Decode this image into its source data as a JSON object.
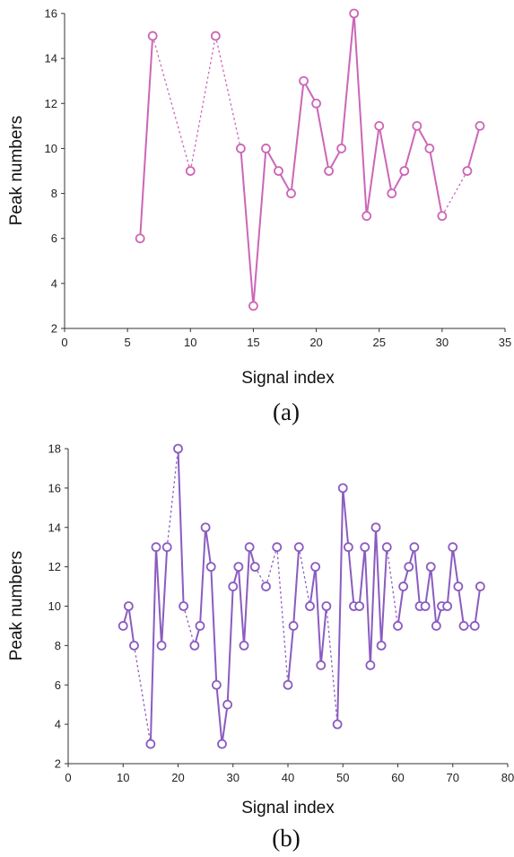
{
  "chart_data": [
    {
      "type": "line",
      "panel_label": "(a)",
      "xlabel": "Signal index",
      "ylabel": "Peak numbers",
      "xlim": [
        0,
        35
      ],
      "ylim": [
        2,
        16
      ],
      "xticks": [
        0,
        5,
        10,
        15,
        20,
        25,
        30,
        35
      ],
      "yticks": [
        2,
        4,
        6,
        8,
        10,
        12,
        14,
        16
      ],
      "color": "#cc66b8",
      "grid": false,
      "series": [
        {
          "x": [
            6,
            7,
            10,
            12,
            14,
            15,
            16,
            17,
            18,
            19,
            20,
            21,
            22,
            23,
            24,
            25,
            26,
            27,
            28,
            29,
            30,
            32,
            33
          ],
          "y": [
            6,
            15,
            9,
            15,
            10,
            3,
            10,
            9,
            8,
            13,
            12,
            9,
            10,
            16,
            7,
            11,
            8,
            9,
            11,
            10,
            7,
            9,
            11
          ]
        }
      ]
    },
    {
      "type": "line",
      "panel_label": "(b)",
      "xlabel": "Signal index",
      "ylabel": "Peak numbers",
      "xlim": [
        0,
        80
      ],
      "ylim": [
        2,
        18
      ],
      "xticks": [
        0,
        10,
        20,
        30,
        40,
        50,
        60,
        70,
        80
      ],
      "yticks": [
        2,
        4,
        6,
        8,
        10,
        12,
        14,
        16,
        18
      ],
      "color": "#8a5cc0",
      "grid": false,
      "series": [
        {
          "x": [
            10,
            11,
            12,
            15,
            16,
            17,
            18,
            20,
            21,
            23,
            24,
            25,
            26,
            27,
            28,
            29,
            30,
            31,
            32,
            33,
            34,
            36,
            38,
            40,
            41,
            42,
            44,
            45,
            46,
            47,
            49,
            50,
            51,
            52,
            53,
            54,
            55,
            56,
            57,
            58,
            60,
            61,
            62,
            63,
            64,
            65,
            66,
            67,
            68,
            69,
            70,
            71,
            72,
            74,
            75
          ],
          "y": [
            9,
            10,
            8,
            3,
            13,
            8,
            13,
            18,
            10,
            8,
            9,
            14,
            12,
            6,
            3,
            5,
            11,
            12,
            8,
            13,
            12,
            11,
            13,
            6,
            9,
            13,
            10,
            12,
            7,
            10,
            4,
            16,
            13,
            10,
            10,
            13,
            7,
            14,
            8,
            13,
            9,
            11,
            12,
            13,
            10,
            10,
            12,
            9,
            10,
            10,
            13,
            11,
            9,
            9,
            11
          ]
        }
      ]
    }
  ]
}
